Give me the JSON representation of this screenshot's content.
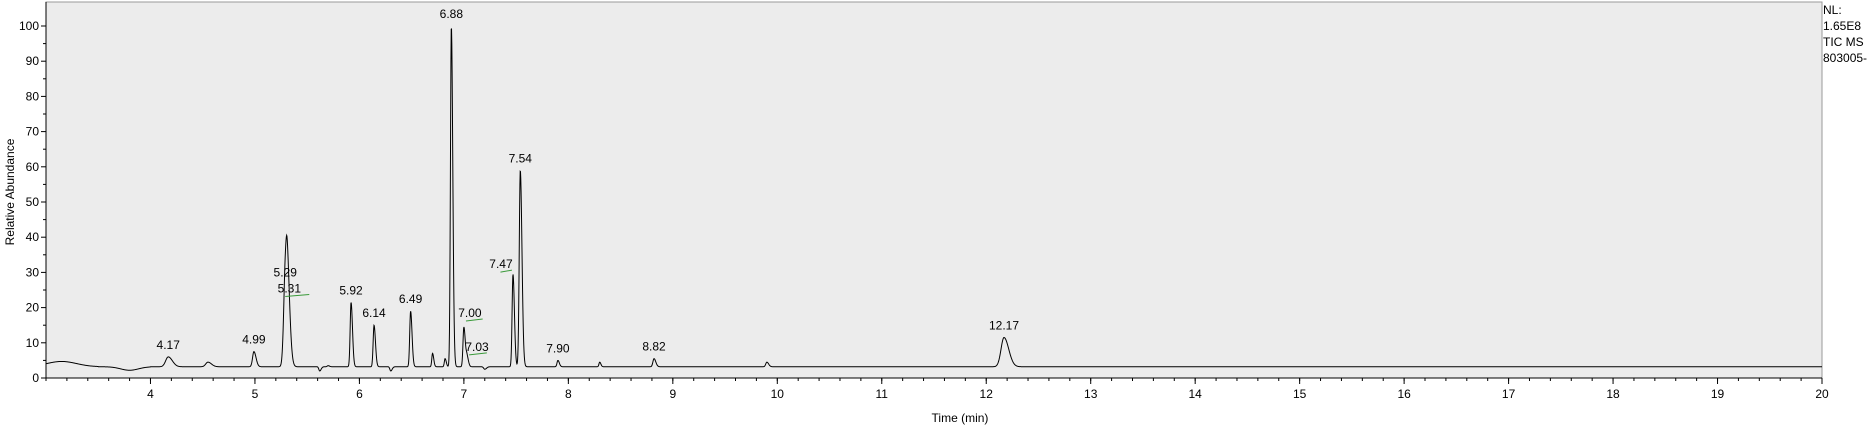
{
  "info_panel": {
    "nl_label": "NL:",
    "nl_value": "1.65E8",
    "scan_filter": "TIC  MS",
    "file_name": "803005-"
  },
  "chart_data": {
    "type": "line",
    "xlabel": "Time (min)",
    "ylabel": "Relative Abundance",
    "xlim": [
      3.0,
      20.0
    ],
    "ylim": [
      0,
      100
    ],
    "x_ticks": [
      "4",
      "5",
      "6",
      "7",
      "8",
      "9",
      "10",
      "11",
      "12",
      "13",
      "14",
      "15",
      "16",
      "17",
      "18",
      "19",
      "20"
    ],
    "y_ticks": [
      "0",
      "10",
      "20",
      "30",
      "40",
      "50",
      "60",
      "70",
      "80",
      "90",
      "100"
    ],
    "grid": false,
    "baseline": 3.2,
    "peaks": [
      {
        "rt": 4.17,
        "height": 6,
        "width": 0.035,
        "label": "4.17"
      },
      {
        "rt": 4.55,
        "height": 4.5,
        "width": 0.03,
        "label": ""
      },
      {
        "rt": 4.99,
        "height": 7.5,
        "width": 0.018,
        "label": "4.99"
      },
      {
        "rt": 5.29,
        "height": 26.5,
        "width": 0.022,
        "label": "5.29"
      },
      {
        "rt": 5.31,
        "height": 22,
        "width": 0.022,
        "label": "5.31"
      },
      {
        "rt": 5.62,
        "height": 2,
        "width": 0.012,
        "label": ""
      },
      {
        "rt": 5.7,
        "height": 3.5,
        "width": 0.012,
        "label": ""
      },
      {
        "rt": 5.92,
        "height": 21.5,
        "width": 0.012,
        "label": "5.92"
      },
      {
        "rt": 6.14,
        "height": 15,
        "width": 0.012,
        "label": "6.14"
      },
      {
        "rt": 6.3,
        "height": 2,
        "width": 0.012,
        "label": ""
      },
      {
        "rt": 6.49,
        "height": 19,
        "width": 0.012,
        "label": "6.49"
      },
      {
        "rt": 6.7,
        "height": 7,
        "width": 0.01,
        "label": ""
      },
      {
        "rt": 6.82,
        "height": 5.5,
        "width": 0.01,
        "label": ""
      },
      {
        "rt": 6.88,
        "height": 100,
        "width": 0.012,
        "label": "6.88"
      },
      {
        "rt": 7.0,
        "height": 14.5,
        "width": 0.012,
        "label": "7.00"
      },
      {
        "rt": 7.03,
        "height": 6,
        "width": 0.012,
        "label": "7.03"
      },
      {
        "rt": 7.2,
        "height": 2.5,
        "width": 0.015,
        "label": ""
      },
      {
        "rt": 7.47,
        "height": 29.5,
        "width": 0.012,
        "label": "7.47"
      },
      {
        "rt": 7.54,
        "height": 59,
        "width": 0.014,
        "label": "7.54"
      },
      {
        "rt": 7.9,
        "height": 5,
        "width": 0.012,
        "label": "7.90"
      },
      {
        "rt": 8.3,
        "height": 4.5,
        "width": 0.01,
        "label": ""
      },
      {
        "rt": 8.82,
        "height": 5.5,
        "width": 0.015,
        "label": "8.82"
      },
      {
        "rt": 9.9,
        "height": 4.5,
        "width": 0.015,
        "label": ""
      },
      {
        "rt": 12.17,
        "height": 11.5,
        "width": 0.04,
        "label": "12.17"
      }
    ]
  }
}
